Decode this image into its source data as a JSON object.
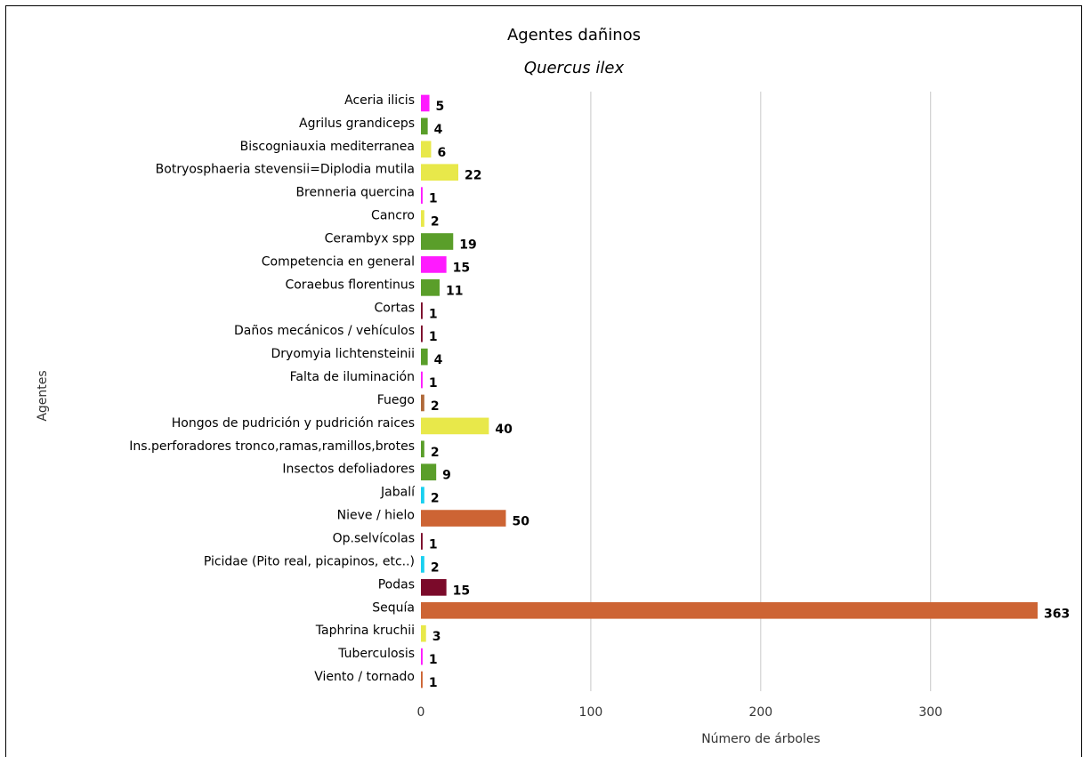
{
  "chart_data": {
    "type": "bar",
    "orientation": "horizontal",
    "title": "Agentes dañinos",
    "subtitle": "Quercus ilex",
    "xlabel": "Número de árboles",
    "ylabel": "Agentes",
    "xlim": [
      0,
      363
    ],
    "xticks": [
      0,
      100,
      200,
      300
    ],
    "grid": true,
    "categories": [
      "Aceria ilicis",
      "Agrilus grandiceps",
      "Biscogniauxia mediterranea",
      "Botryosphaeria stevensii=Diplodia mutila",
      "Brenneria quercina",
      "Cancro",
      "Cerambyx spp",
      "Competencia en general",
      "Coraebus florentinus",
      "Cortas",
      "Daños mecánicos / vehículos",
      "Dryomyia lichtensteinii",
      "Falta de iluminación",
      "Fuego",
      "Hongos de pudrición y pudrición raices",
      "Ins.perforadores tronco,ramas,ramillos,brotes",
      "Insectos defoliadores",
      "Jabalí",
      "Nieve / hielo",
      "Op.selvícolas",
      "Picidae (Pito real, picapinos, etc..)",
      "Podas",
      "Sequía",
      "Taphrina kruchii",
      "Tuberculosis",
      "Viento / tornado"
    ],
    "values": [
      5,
      4,
      6,
      22,
      1,
      2,
      19,
      15,
      11,
      1,
      1,
      4,
      1,
      2,
      40,
      2,
      9,
      2,
      50,
      1,
      2,
      15,
      363,
      3,
      1,
      1
    ],
    "colors": [
      "#ff1aff",
      "#5a9e2a",
      "#e8e84a",
      "#e8e84a",
      "#ff1aff",
      "#e8e84a",
      "#5a9e2a",
      "#ff1aff",
      "#5a9e2a",
      "#7b0a2a",
      "#7b0a2a",
      "#5a9e2a",
      "#ff1aff",
      "#b06a3a",
      "#e8e84a",
      "#5a9e2a",
      "#5a9e2a",
      "#1ad0f0",
      "#cd6434",
      "#7b0a2a",
      "#1ad0f0",
      "#7b0a2a",
      "#cd6434",
      "#e8e84a",
      "#ff1aff",
      "#cd6434"
    ]
  }
}
